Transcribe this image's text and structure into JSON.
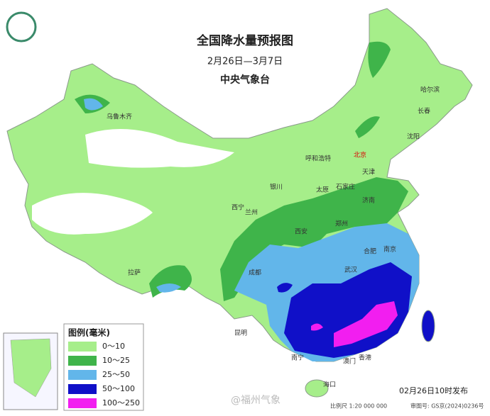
{
  "header": {
    "title": "全国降水量预报图",
    "period": "2月26日—3月7日",
    "issuer": "中央气象台"
  },
  "cities": [
    "乌鲁木齐",
    "哈尔滨",
    "长春",
    "沈阳",
    "北京",
    "天津",
    "呼和浩特",
    "石家庄",
    "太原",
    "银川",
    "济南",
    "西宁",
    "兰州",
    "郑州",
    "西安",
    "合肥",
    "南京",
    "武汉",
    "成都",
    "拉萨",
    "昆明",
    "南宁",
    "海口",
    "香港",
    "澳门"
  ],
  "legend": {
    "title": "图例(毫米)",
    "items": [
      {
        "label": "0～10",
        "color": "#a6ee8a"
      },
      {
        "label": "10～25",
        "color": "#3fb44a"
      },
      {
        "label": "25～50",
        "color": "#62b6ea"
      },
      {
        "label": "50～100",
        "color": "#1010c8"
      },
      {
        "label": "100～250",
        "color": "#f21ef0"
      }
    ]
  },
  "footer": {
    "published": "02月26日10时发布",
    "scale": "比例尺 1:20 000 000",
    "map_number": "审图号: GS京(2024)0236号",
    "watermark": "@福州气象"
  }
}
